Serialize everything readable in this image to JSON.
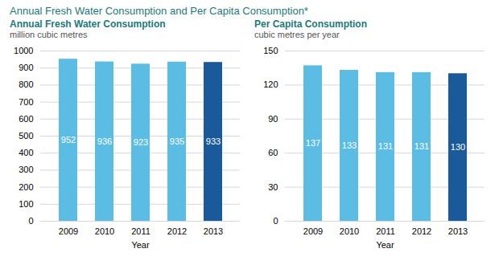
{
  "title": "Annual Fresh Water Consumption and Per Capita Consumption*",
  "chart_data": [
    {
      "type": "bar",
      "title": "Annual Fresh Water Consumption",
      "subtitle": "million cubic metres",
      "xlabel": "Year",
      "categories": [
        "2009",
        "2010",
        "2011",
        "2012",
        "2013"
      ],
      "values": [
        952,
        936,
        923,
        935,
        933
      ],
      "colors": [
        "#5bbde4",
        "#5bbde4",
        "#5bbde4",
        "#5bbde4",
        "#1a5a9a"
      ],
      "ylim": [
        0,
        1000
      ],
      "yticks": [
        0,
        100,
        200,
        300,
        400,
        500,
        600,
        700,
        800,
        900,
        1000
      ],
      "grid": true,
      "data_labels": true
    },
    {
      "type": "bar",
      "title": "Per Capita Consumption",
      "subtitle": "cubic metres per year",
      "xlabel": "Year",
      "categories": [
        "2009",
        "2010",
        "2011",
        "2012",
        "2013"
      ],
      "values": [
        137,
        133,
        131,
        131,
        130
      ],
      "colors": [
        "#5bbde4",
        "#5bbde4",
        "#5bbde4",
        "#5bbde4",
        "#1a5a9a"
      ],
      "ylim": [
        0,
        150
      ],
      "yticks": [
        0,
        30,
        60,
        90,
        120,
        150
      ],
      "grid": true,
      "data_labels": true
    }
  ]
}
